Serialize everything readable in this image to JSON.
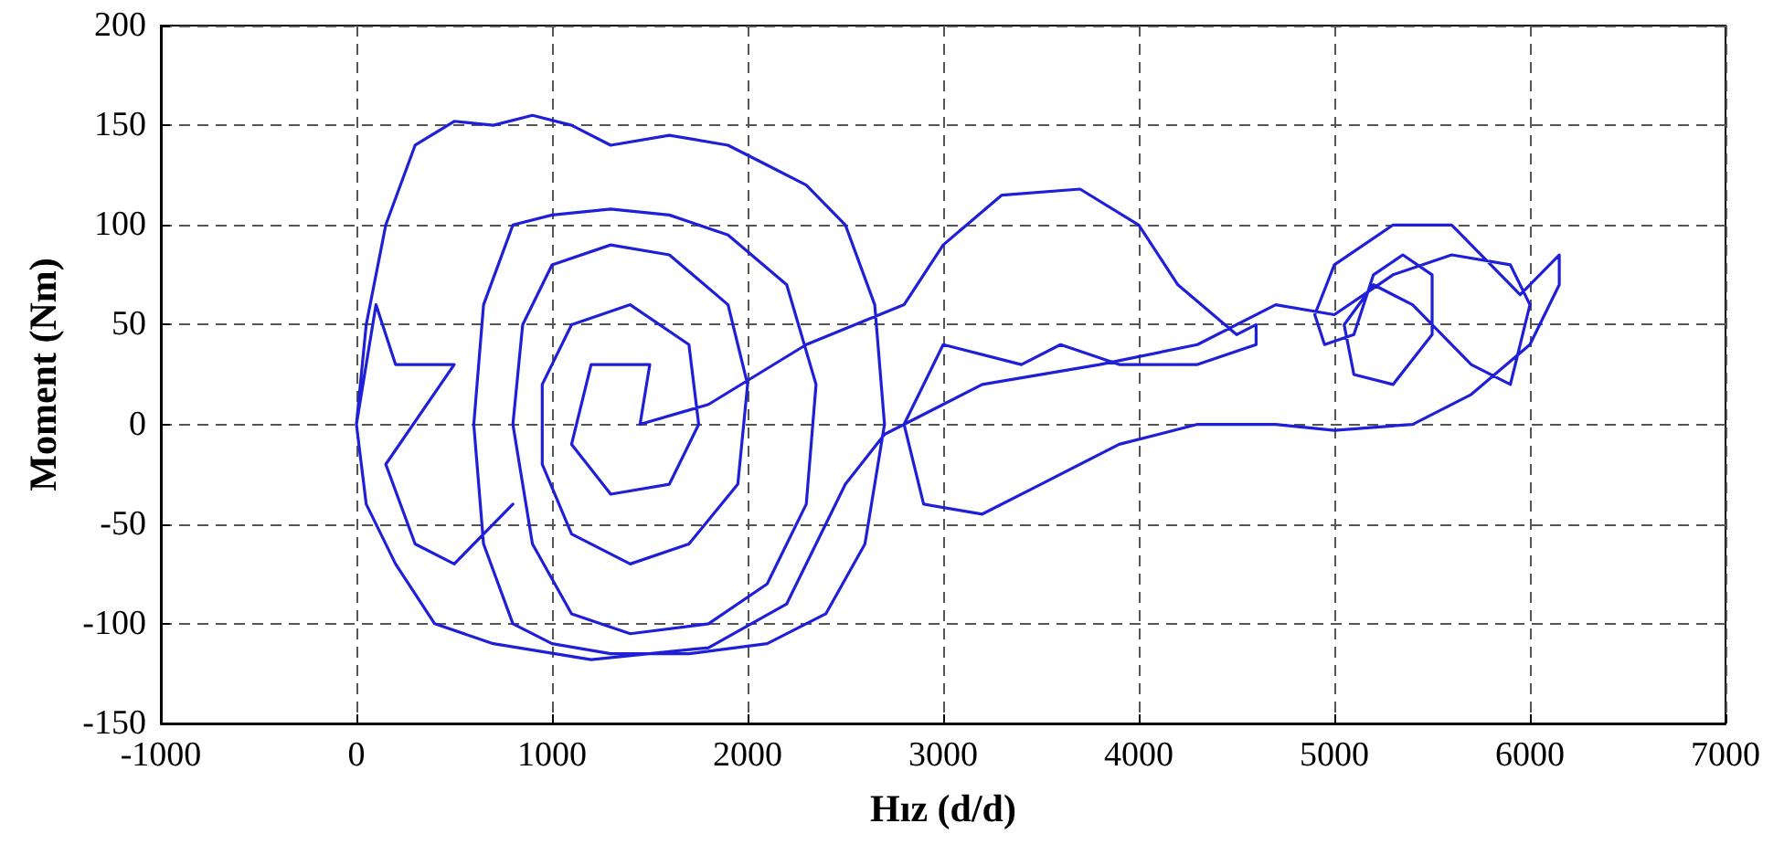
{
  "chart_data": {
    "type": "line",
    "xlabel": "Hız (d/d)",
    "ylabel": "Moment (Nm)",
    "xlim": [
      -1000,
      7000
    ],
    "xticks": [
      -1000,
      0,
      1000,
      2000,
      3000,
      4000,
      5000,
      6000,
      7000
    ],
    "ylim": [
      -150,
      200
    ],
    "yticks": [
      -150,
      -100,
      -50,
      0,
      50,
      100,
      150,
      200
    ],
    "grid": true,
    "marker": "none",
    "line_style": "solid",
    "series": [
      {
        "color": "#1f1fd8",
        "x": [
          0,
          50,
          150,
          300,
          500,
          700,
          900,
          1100,
          1300,
          1600,
          1900,
          2100,
          2300,
          2500,
          2650,
          2700,
          2600,
          2400,
          2100,
          1700,
          1300,
          1000,
          800,
          650,
          600,
          650,
          800,
          1000,
          1300,
          1600,
          1900,
          2200,
          2350,
          2300,
          2100,
          1800,
          1400,
          1100,
          900,
          800,
          850,
          1000,
          1300,
          1600,
          1900,
          2000,
          1950,
          1700,
          1400,
          1100,
          950,
          950,
          1100,
          1400,
          1700,
          1750,
          1600,
          1300,
          1100,
          1200,
          1500,
          1450,
          1800,
          2300,
          2800,
          3000,
          3300,
          3700,
          4000,
          4200,
          4500,
          4600,
          4600,
          4300,
          3900,
          3600,
          3400,
          3000,
          2800,
          2900,
          3200,
          3500,
          3900,
          4300,
          4700,
          5000,
          5400,
          5700,
          6000,
          6150,
          6150,
          6050,
          5950,
          5800,
          5600,
          5300,
          5000,
          4900,
          4950,
          5100,
          5200,
          5350,
          5500,
          5500,
          5300,
          5100,
          5050,
          5200,
          5400,
          5700,
          5900,
          6000,
          5900,
          5600,
          5300,
          5000,
          4700,
          4300,
          3800,
          3200,
          2700,
          2500,
          2200,
          1800,
          1200,
          700,
          400,
          200,
          50,
          0,
          100,
          200,
          500,
          150,
          300,
          500,
          800
        ],
        "values": [
          0,
          50,
          100,
          140,
          152,
          150,
          155,
          150,
          140,
          145,
          140,
          130,
          120,
          100,
          60,
          0,
          -60,
          -95,
          -110,
          -115,
          -115,
          -110,
          -100,
          -60,
          0,
          60,
          100,
          105,
          108,
          105,
          95,
          70,
          20,
          -40,
          -80,
          -100,
          -105,
          -95,
          -60,
          0,
          50,
          80,
          90,
          85,
          60,
          20,
          -30,
          -60,
          -70,
          -55,
          -20,
          20,
          50,
          60,
          40,
          0,
          -30,
          -35,
          -10,
          30,
          30,
          0,
          10,
          40,
          60,
          90,
          115,
          118,
          100,
          70,
          45,
          50,
          40,
          30,
          30,
          40,
          30,
          40,
          0,
          -40,
          -45,
          -30,
          -10,
          0,
          0,
          -3,
          0,
          15,
          40,
          70,
          85,
          75,
          65,
          80,
          100,
          100,
          80,
          55,
          40,
          45,
          75,
          85,
          75,
          45,
          20,
          25,
          50,
          70,
          60,
          30,
          20,
          60,
          80,
          85,
          75,
          55,
          60,
          40,
          30,
          20,
          -5,
          -30,
          -90,
          -112,
          -118,
          -110,
          -100,
          -70,
          -40,
          0,
          60,
          30,
          30,
          -20,
          -60,
          -70,
          -40
        ]
      }
    ]
  }
}
